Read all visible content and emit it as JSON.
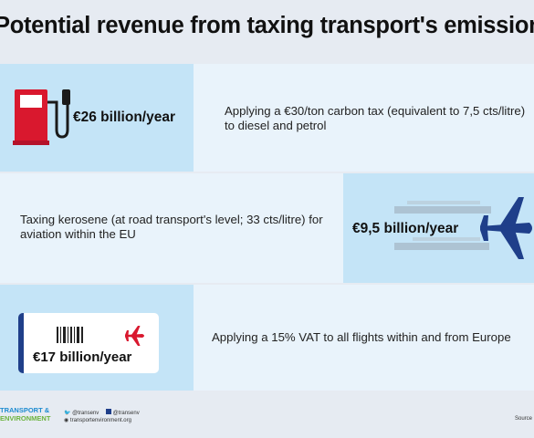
{
  "title": "Potential revenue from taxing transport's emissions",
  "rows": [
    {
      "value": "€26 billion/year",
      "description": "Applying a €30/ton carbon tax (equivalent to 7,5 cts/litre) to diesel and petrol",
      "icon": "fuel-pump-icon"
    },
    {
      "value": "€9,5 billion/year",
      "description": "Taxing kerosene (at road transport's level; 33 cts/litre) for aviation within the EU",
      "icon": "airplane-icon"
    },
    {
      "value": "€17 billion/year",
      "description": "Applying a 15% VAT to all flights within and from Europe",
      "icon": "boarding-pass-icon"
    }
  ],
  "footer": {
    "brand_line1": "TRANSPORT &",
    "brand_line2": "ENVIRONMENT",
    "twitter": "@transenv",
    "facebook": "@transenv",
    "website": "transportenvironment.org",
    "source": "Source"
  },
  "colors": {
    "accent_red": "#d9182e",
    "accent_navy": "#1f3f8a",
    "panel_blue": "#c4e4f7",
    "row_bg": "#e9f3fb"
  }
}
